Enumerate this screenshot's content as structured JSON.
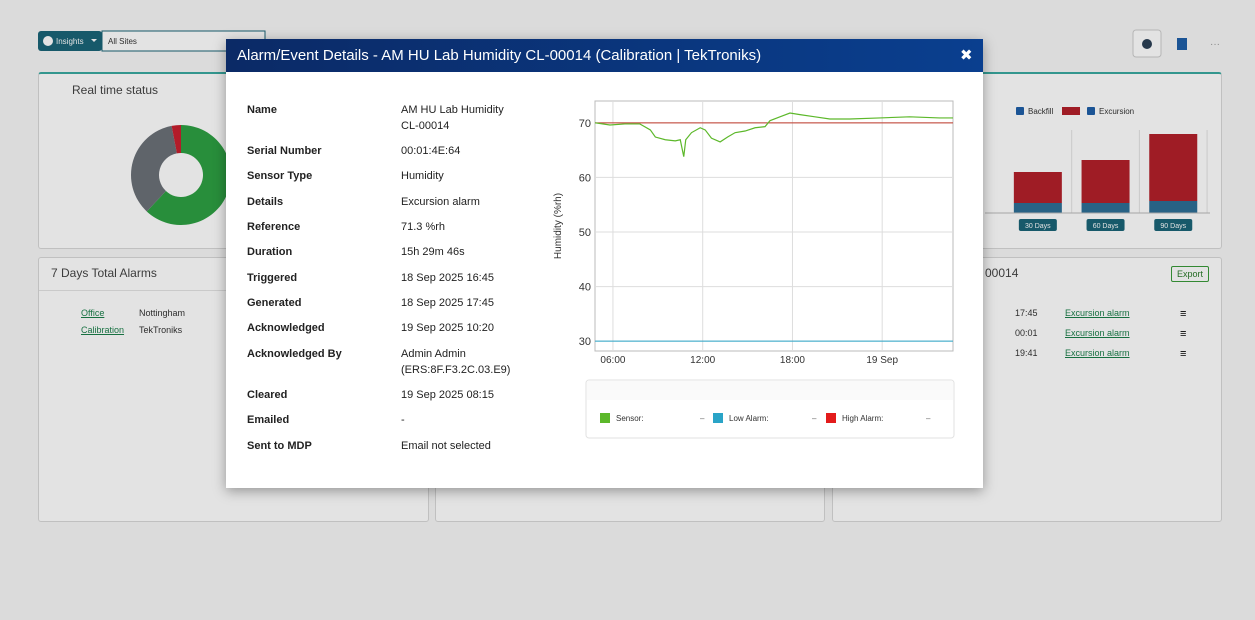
{
  "toolbar": {
    "insights": "Insights",
    "site": "All Sites"
  },
  "panels": {
    "real_time_status": {
      "title": "Real time status"
    },
    "seven_days": {
      "title": "7 Days Total Alarms",
      "rows": [
        [
          "Office",
          "Nottingham"
        ],
        [
          "Calibration",
          "TekTroniks"
        ]
      ]
    },
    "alarm_list": {
      "title": "00014",
      "export": "Export",
      "rows": [
        [
          "17:45",
          "Excursion alarm"
        ],
        [
          "00:01",
          "Excursion alarm"
        ],
        [
          "19:41",
          "Excursion alarm"
        ]
      ]
    }
  },
  "modal": {
    "title": "Alarm/Event Details - AM HU Lab Humidity CL-00014 (Calibration | TekTroniks)",
    "close": "✖",
    "details": [
      {
        "label": "Name",
        "value": "AM HU Lab Humidity CL-00014"
      },
      {
        "label": "Serial Number",
        "value": "00:01:4E:64"
      },
      {
        "label": "Sensor Type",
        "value": "Humidity"
      },
      {
        "label": "Details",
        "value": "Excursion alarm"
      },
      {
        "label": "Reference",
        "value": "71.3 %rh"
      },
      {
        "label": "Duration",
        "value": "15h 29m 46s"
      },
      {
        "label": "Triggered",
        "value": "18 Sep 2025 16:45"
      },
      {
        "label": "Generated",
        "value": "18 Sep 2025 17:45"
      },
      {
        "label": "Acknowledged",
        "value": "19 Sep 2025 10:20"
      },
      {
        "label": "Acknowledged By",
        "value": "Admin Admin (ERS:8F.F3.2C.03.E9)"
      },
      {
        "label": "Cleared",
        "value": "19 Sep 2025 08:15"
      },
      {
        "label": "Emailed",
        "value": "-"
      },
      {
        "label": "Sent to MDP",
        "value": "Email not selected"
      }
    ]
  },
  "chart_data": [
    {
      "type": "pie",
      "donut": true,
      "values": [
        62,
        35,
        3
      ],
      "colors": [
        "#2ea043",
        "#6b7178",
        "#c8202f"
      ]
    },
    {
      "type": "bar",
      "stacked": true,
      "categories": [
        "30 Days",
        "60 Days",
        "90 Days"
      ],
      "series": [
        {
          "name": "Backfill",
          "color": "#2e6f96",
          "values": [
            10,
            10,
            12
          ]
        },
        {
          "name": "Excursion",
          "color": "#b3202a",
          "values": [
            31,
            43,
            67
          ]
        }
      ],
      "ylim": [
        0,
        100
      ]
    },
    {
      "type": "line",
      "y_label": "Humidity (%rh)",
      "x": [
        "18 Sep 04:48",
        "18 Sep 05:48",
        "18 Sep 06:48",
        "18 Sep 07:48",
        "18 Sep 08:30",
        "18 Sep 08:50",
        "18 Sep 09:30",
        "18 Sep 10:10",
        "18 Sep 10:30",
        "18 Sep 10:44",
        "18 Sep 10:52",
        "18 Sep 11:15",
        "18 Sep 11:50",
        "18 Sep 12:10",
        "18 Sep 12:35",
        "18 Sep 13:10",
        "18 Sep 13:40",
        "18 Sep 14:10",
        "18 Sep 14:50",
        "18 Sep 15:30",
        "18 Sep 16:10",
        "18 Sep 16:30",
        "18 Sep 17:10",
        "18 Sep 17:50",
        "18 Sep 18:30",
        "18 Sep 19:30",
        "18 Sep 20:30",
        "18 Sep 21:50",
        "18 Sep 23:50",
        "19 Sep 01:50",
        "19 Sep 03:50",
        "19 Sep 04:44"
      ],
      "series": [
        {
          "name": "Sensor:",
          "color": "#5cb82a",
          "values": [
            70.0,
            69.6,
            69.8,
            69.8,
            68.7,
            67.4,
            66.9,
            66.7,
            66.9,
            63.8,
            66.9,
            68.2,
            69.1,
            68.7,
            67.2,
            66.5,
            67.4,
            68.2,
            68.5,
            69.1,
            69.3,
            70.4,
            71.1,
            71.8,
            71.5,
            71.1,
            70.7,
            70.7,
            70.9,
            71.1,
            70.9,
            70.9
          ]
        },
        {
          "name": "Low Alarm:",
          "color": "#2aa4c7",
          "values": [
            30,
            30,
            30,
            30,
            30,
            30,
            30,
            30,
            30,
            30,
            30,
            30,
            30,
            30,
            30,
            30,
            30,
            30,
            30,
            30,
            30,
            30,
            30,
            30,
            30,
            30,
            30,
            30,
            30,
            30,
            30,
            30
          ]
        },
        {
          "name": "High Alarm:",
          "color": "#e31b1b",
          "values": [
            70,
            70,
            70,
            70,
            70,
            70,
            70,
            70,
            70,
            70,
            70,
            70,
            70,
            70,
            70,
            70,
            70,
            70,
            70,
            70,
            70,
            70,
            70,
            70,
            70,
            70,
            70,
            70,
            70,
            70,
            70,
            70
          ]
        }
      ],
      "legend_values": [
        "–",
        "–",
        "–"
      ],
      "xlim": [
        "18 Sep 04:48",
        "19 Sep 04:44"
      ],
      "xticks": [
        {
          "value": "18 Sep 06:00",
          "label": "06:00"
        },
        {
          "value": "18 Sep 12:00",
          "label": "12:00"
        },
        {
          "value": "18 Sep 18:00",
          "label": "18:00"
        },
        {
          "value": "19 Sep 00:00",
          "label": "19 Sep"
        }
      ],
      "ylim": [
        28.2,
        74
      ],
      "yticks": [
        30,
        40,
        50,
        60,
        70
      ],
      "grid": true
    }
  ]
}
